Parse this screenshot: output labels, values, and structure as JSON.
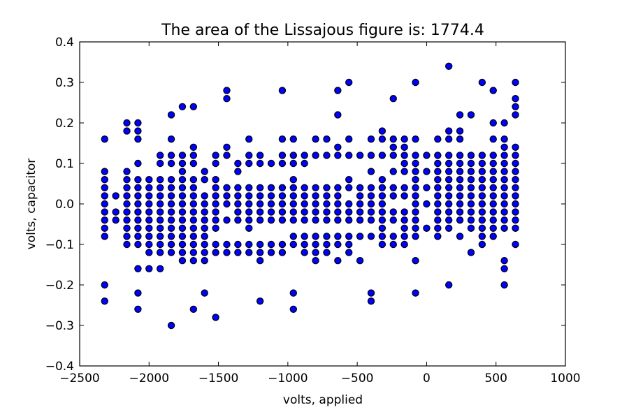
{
  "chart_data": {
    "type": "scatter",
    "title": "The area of the Lissajous figure is: 1774.4",
    "xlabel": "volts, applied",
    "ylabel": "volts, capacitor",
    "xlim": [
      -2500,
      1000
    ],
    "ylim": [
      -0.4,
      0.4
    ],
    "xticks": [
      -2500,
      -2000,
      -1500,
      -1000,
      -500,
      0,
      500,
      1000
    ],
    "xtick_labels": [
      "−2500",
      "−2000",
      "−1500",
      "−1000",
      "−500",
      "0",
      "500",
      "1000"
    ],
    "yticks": [
      -0.4,
      -0.3,
      -0.2,
      -0.1,
      0.0,
      0.1,
      0.2,
      0.3,
      0.4
    ],
    "ytick_labels": [
      "−0.4",
      "−0.3",
      "−0.2",
      "−0.1",
      "0.0",
      "0.1",
      "0.2",
      "0.3",
      "0.4"
    ],
    "grid": false,
    "marker_color": "#0000ff",
    "marker_edge": "#000000",
    "columns": [
      {
        "x": -2320,
        "y": [
          0.16,
          0.08,
          0.06,
          0.04,
          0.02,
          0.0,
          -0.02,
          -0.04,
          -0.06,
          -0.08,
          -0.2,
          -0.24
        ]
      },
      {
        "x": -2240,
        "y": [
          0.02,
          -0.02,
          -0.04
        ]
      },
      {
        "x": -2160,
        "y": [
          0.2,
          0.18,
          0.08,
          0.06,
          0.04,
          0.02,
          0.0,
          -0.02,
          -0.04,
          -0.06,
          -0.08,
          -0.1
        ]
      },
      {
        "x": -2080,
        "y": [
          0.2,
          0.18,
          0.16,
          0.1,
          0.06,
          0.04,
          0.02,
          0.0,
          -0.02,
          -0.04,
          -0.06,
          -0.08,
          -0.1,
          -0.16,
          -0.22,
          -0.26
        ]
      },
      {
        "x": -2000,
        "y": [
          0.06,
          0.04,
          0.02,
          0.0,
          -0.02,
          -0.04,
          -0.06,
          -0.08,
          -0.1,
          -0.12,
          -0.16
        ]
      },
      {
        "x": -1920,
        "y": [
          0.12,
          0.1,
          0.06,
          0.04,
          0.02,
          0.0,
          -0.02,
          -0.04,
          -0.06,
          -0.08,
          -0.1,
          -0.12,
          -0.16
        ]
      },
      {
        "x": -1840,
        "y": [
          0.22,
          0.16,
          0.12,
          0.1,
          0.06,
          0.04,
          0.02,
          0.0,
          -0.02,
          -0.04,
          -0.06,
          -0.08,
          -0.1,
          -0.12,
          -0.3
        ]
      },
      {
        "x": -1760,
        "y": [
          0.24,
          0.12,
          0.1,
          0.08,
          0.06,
          0.04,
          0.02,
          0.0,
          -0.02,
          -0.04,
          -0.06,
          -0.08,
          -0.1,
          -0.12,
          -0.14
        ]
      },
      {
        "x": -1680,
        "y": [
          0.24,
          0.14,
          0.12,
          0.1,
          0.06,
          0.04,
          0.02,
          0.0,
          -0.02,
          -0.04,
          -0.06,
          -0.08,
          -0.1,
          -0.12,
          -0.14,
          -0.26
        ]
      },
      {
        "x": -1600,
        "y": [
          0.08,
          0.06,
          0.02,
          0.0,
          -0.02,
          -0.04,
          -0.06,
          -0.08,
          -0.1,
          -0.12,
          -0.14,
          -0.22
        ]
      },
      {
        "x": -1520,
        "y": [
          0.12,
          0.1,
          0.06,
          0.04,
          0.02,
          0.0,
          -0.02,
          -0.04,
          -0.06,
          -0.1,
          -0.12,
          -0.28
        ]
      },
      {
        "x": -1440,
        "y": [
          0.28,
          0.26,
          0.14,
          0.12,
          0.04,
          0.02,
          0.0,
          -0.04,
          -0.1,
          -0.12
        ]
      },
      {
        "x": -1360,
        "y": [
          0.1,
          0.08,
          0.04,
          0.02,
          0.0,
          -0.02,
          -0.04,
          -0.1,
          -0.12
        ]
      },
      {
        "x": -1280,
        "y": [
          0.16,
          0.12,
          0.1,
          0.04,
          0.02,
          0.0,
          -0.02,
          -0.04,
          -0.06,
          -0.1,
          -0.12
        ]
      },
      {
        "x": -1200,
        "y": [
          0.12,
          0.1,
          0.04,
          0.02,
          0.0,
          -0.02,
          -0.04,
          -0.1,
          -0.12,
          -0.14,
          -0.24
        ]
      },
      {
        "x": -1120,
        "y": [
          0.1,
          0.04,
          0.02,
          0.0,
          -0.02,
          -0.04,
          -0.1,
          -0.12
        ]
      },
      {
        "x": -1040,
        "y": [
          0.28,
          0.16,
          0.12,
          0.1,
          0.04,
          0.02,
          0.0,
          -0.02,
          -0.04,
          -0.1,
          -0.12
        ]
      },
      {
        "x": -960,
        "y": [
          0.16,
          0.12,
          0.1,
          0.06,
          0.04,
          0.02,
          0.0,
          -0.02,
          -0.04,
          -0.08,
          -0.1,
          -0.22,
          -0.26
        ]
      },
      {
        "x": -880,
        "y": [
          0.12,
          0.1,
          0.04,
          0.02,
          0.0,
          -0.02,
          -0.04,
          -0.08,
          -0.1,
          -0.12
        ]
      },
      {
        "x": -800,
        "y": [
          0.16,
          0.12,
          0.04,
          0.02,
          0.0,
          -0.02,
          -0.04,
          -0.08,
          -0.1,
          -0.12,
          -0.14
        ]
      },
      {
        "x": -720,
        "y": [
          0.16,
          0.12,
          0.04,
          0.02,
          0.0,
          -0.02,
          -0.04,
          -0.08,
          -0.1,
          -0.12
        ]
      },
      {
        "x": -640,
        "y": [
          0.28,
          0.22,
          0.14,
          0.12,
          0.04,
          0.02,
          0.0,
          -0.02,
          -0.04,
          -0.08,
          -0.1,
          -0.14
        ]
      },
      {
        "x": -560,
        "y": [
          0.3,
          0.16,
          0.12,
          0.06,
          0.04,
          0.0,
          -0.02,
          -0.04,
          -0.08,
          -0.1,
          -0.12
        ]
      },
      {
        "x": -480,
        "y": [
          0.12,
          0.04,
          0.02,
          0.0,
          -0.02,
          -0.04,
          -0.08,
          -0.14
        ]
      },
      {
        "x": -400,
        "y": [
          0.16,
          0.12,
          0.08,
          0.04,
          0.02,
          0.0,
          -0.02,
          -0.04,
          -0.08,
          -0.22,
          -0.24
        ]
      },
      {
        "x": -320,
        "y": [
          0.18,
          0.16,
          0.12,
          0.06,
          0.04,
          0.02,
          0.0,
          -0.02,
          -0.04,
          -0.06,
          -0.08,
          -0.1
        ]
      },
      {
        "x": -240,
        "y": [
          0.26,
          0.16,
          0.14,
          0.12,
          0.08,
          0.04,
          0.02,
          -0.02,
          -0.04,
          -0.08,
          -0.1
        ]
      },
      {
        "x": -160,
        "y": [
          0.16,
          0.14,
          0.12,
          0.1,
          0.08,
          0.04,
          0.02,
          -0.02,
          -0.04,
          -0.06,
          -0.08,
          -0.1
        ]
      },
      {
        "x": -80,
        "y": [
          0.3,
          0.16,
          0.12,
          0.1,
          0.08,
          0.06,
          0.04,
          0.02,
          0.0,
          -0.02,
          -0.04,
          -0.06,
          -0.08,
          -0.14,
          -0.22
        ]
      },
      {
        "x": 0,
        "y": [
          0.12,
          0.08,
          0.04,
          0.0,
          -0.06
        ]
      },
      {
        "x": 80,
        "y": [
          0.16,
          0.12,
          0.1,
          0.08,
          0.06,
          0.04,
          0.02,
          0.0,
          -0.02,
          -0.04,
          -0.06,
          -0.08
        ]
      },
      {
        "x": 160,
        "y": [
          0.34,
          0.18,
          0.16,
          0.12,
          0.1,
          0.08,
          0.06,
          0.04,
          0.02,
          0.0,
          -0.02,
          -0.04,
          -0.06,
          -0.2
        ]
      },
      {
        "x": 240,
        "y": [
          0.22,
          0.18,
          0.16,
          0.12,
          0.1,
          0.08,
          0.06,
          0.04,
          0.02,
          0.0,
          -0.02,
          -0.04,
          -0.08
        ]
      },
      {
        "x": 320,
        "y": [
          0.22,
          0.12,
          0.1,
          0.08,
          0.06,
          0.04,
          0.02,
          0.0,
          -0.02,
          -0.04,
          -0.06,
          -0.12
        ]
      },
      {
        "x": 400,
        "y": [
          0.3,
          0.12,
          0.1,
          0.08,
          0.06,
          0.04,
          0.02,
          0.0,
          -0.02,
          -0.04,
          -0.06,
          -0.08,
          -0.1
        ]
      },
      {
        "x": 480,
        "y": [
          0.28,
          0.2,
          0.16,
          0.12,
          0.1,
          0.08,
          0.06,
          0.04,
          0.02,
          0.0,
          -0.02,
          -0.04,
          -0.06,
          -0.08
        ]
      },
      {
        "x": 560,
        "y": [
          0.2,
          0.16,
          0.14,
          0.12,
          0.1,
          0.08,
          0.06,
          0.04,
          0.02,
          0.0,
          -0.02,
          -0.04,
          -0.06,
          -0.14,
          -0.16,
          -0.2
        ]
      },
      {
        "x": 640,
        "y": [
          0.3,
          0.26,
          0.24,
          0.22,
          0.14,
          0.12,
          0.1,
          0.08,
          0.06,
          0.04,
          0.02,
          0.0,
          -0.02,
          -0.04,
          -0.06,
          -0.1
        ]
      }
    ]
  }
}
